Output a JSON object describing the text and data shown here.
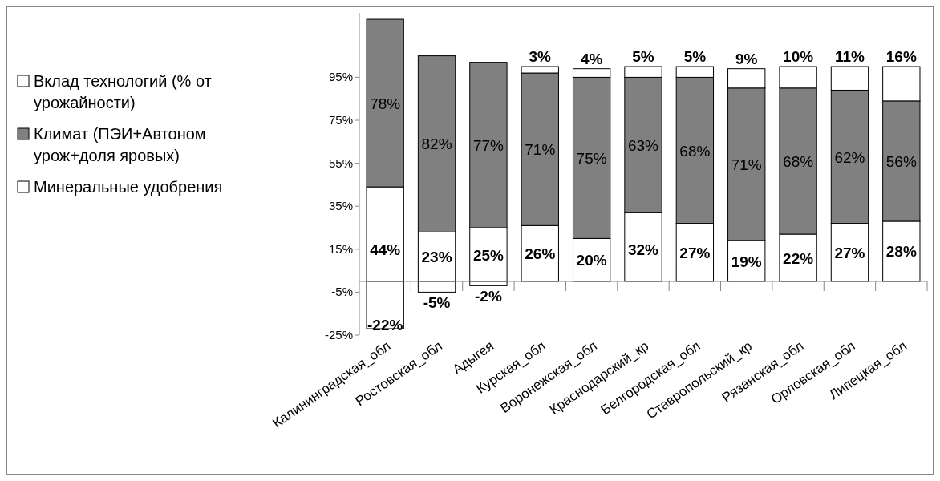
{
  "chart_data": {
    "type": "bar",
    "stacked": true,
    "categories": [
      "Калининградская_обл",
      "Ростовская_обл",
      "Адыгея",
      "Курская_обл",
      "Воронежская_обл",
      "Краснодарский_кр",
      "Белгородская_обл",
      "Ставропольский_кр",
      "Рязанская_обл",
      "Орловская_обл",
      "Липецкая_обл"
    ],
    "series": [
      {
        "name": "Минеральные удобрения",
        "color": "#ffffff",
        "values": [
          44,
          23,
          25,
          26,
          20,
          32,
          27,
          19,
          22,
          27,
          28
        ],
        "value_labels": [
          "44%",
          "23%",
          "25%",
          "26%",
          "20%",
          "32%",
          "27%",
          "19%",
          "22%",
          "27%",
          "28%"
        ]
      },
      {
        "name": "Климат (ПЭИ+Автоном урож+доля яровых)",
        "color": "#808080",
        "values": [
          78,
          82,
          77,
          71,
          75,
          63,
          68,
          71,
          68,
          62,
          56
        ],
        "value_labels": [
          "78%",
          "82%",
          "77%",
          "71%",
          "75%",
          "63%",
          "68%",
          "71%",
          "68%",
          "62%",
          "56%"
        ]
      },
      {
        "name": "Вклад технологий (% от урожайности)",
        "color": "#ffffff",
        "values": [
          -22,
          -5,
          -2,
          3,
          4,
          5,
          5,
          9,
          10,
          11,
          16
        ],
        "value_labels": [
          "-22%",
          "-5%",
          "-2%",
          "3%",
          "4%",
          "5%",
          "5%",
          "9%",
          "10%",
          "11%",
          "16%"
        ]
      }
    ],
    "ylim": [
      -25,
      125
    ],
    "yticks": [
      {
        "value": -25,
        "label": "-25%"
      },
      {
        "value": -5,
        "label": "-5%"
      },
      {
        "value": 15,
        "label": "15%"
      },
      {
        "value": 35,
        "label": "35%"
      },
      {
        "value": 55,
        "label": "55%"
      },
      {
        "value": 75,
        "label": "75%"
      },
      {
        "value": 95,
        "label": "95%"
      }
    ],
    "legend": "left",
    "grid": false
  }
}
